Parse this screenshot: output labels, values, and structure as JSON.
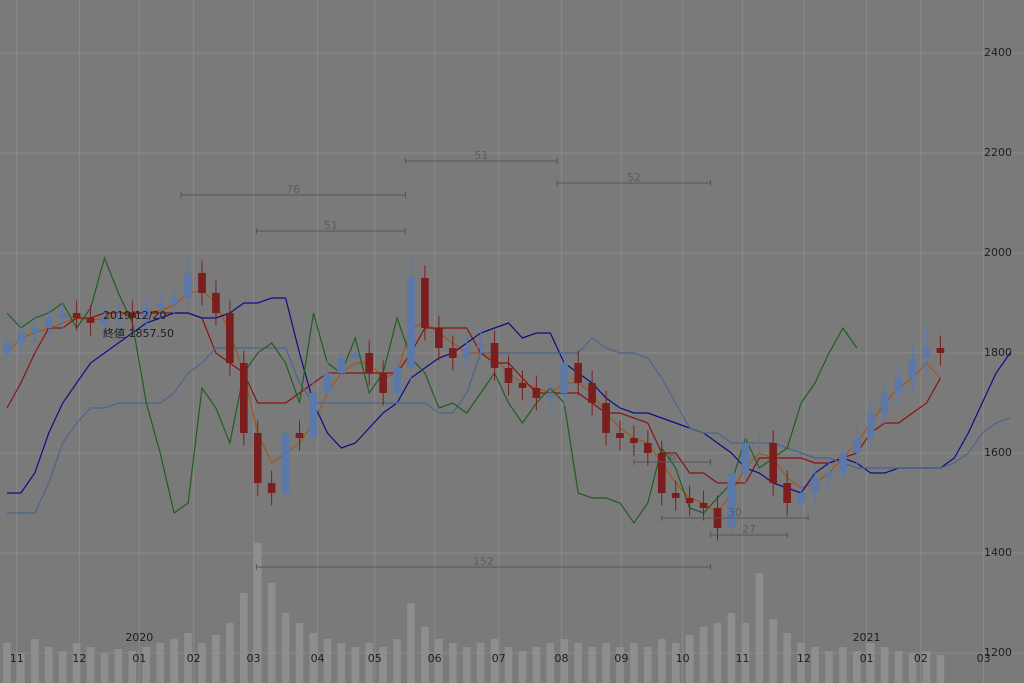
{
  "chart_data": {
    "type": "candlestick",
    "x": [
      0,
      1,
      2,
      3,
      4,
      5,
      6,
      7,
      8,
      9,
      10,
      11,
      12,
      13,
      14,
      15,
      16,
      17,
      18,
      19,
      20,
      21,
      22,
      23,
      24,
      25,
      26,
      27,
      28,
      29,
      30,
      31,
      32,
      33,
      34,
      35,
      36,
      37,
      38,
      39,
      40,
      41,
      42,
      43,
      44,
      45,
      46,
      47,
      48,
      49,
      50,
      51,
      52,
      53,
      54,
      55,
      56,
      57,
      58,
      59,
      60,
      61,
      62,
      63,
      64,
      65,
      66,
      67,
      68,
      69,
      70,
      71,
      72
    ],
    "xlim": [
      -0.5,
      73
    ],
    "ylim": [
      1140,
      2506
    ],
    "yticks": [
      1200,
      1400,
      1600,
      1800,
      2000,
      2200,
      2400
    ],
    "xticks": [
      {
        "value": 0.7,
        "label": "11"
      },
      {
        "value": 5.2,
        "label": "12"
      },
      {
        "value": 9.5,
        "label": "01"
      },
      {
        "value": 13.4,
        "label": "02"
      },
      {
        "value": 17.7,
        "label": "03"
      },
      {
        "value": 22.3,
        "label": "04"
      },
      {
        "value": 26.4,
        "label": "05"
      },
      {
        "value": 30.7,
        "label": "06"
      },
      {
        "value": 35.3,
        "label": "07"
      },
      {
        "value": 39.8,
        "label": "08"
      },
      {
        "value": 44.1,
        "label": "09"
      },
      {
        "value": 48.5,
        "label": "10"
      },
      {
        "value": 52.8,
        "label": "11"
      },
      {
        "value": 57.2,
        "label": "12"
      },
      {
        "value": 61.7,
        "label": "01"
      },
      {
        "value": 65.6,
        "label": "02"
      },
      {
        "value": 70.1,
        "label": "03"
      }
    ],
    "year_labels": [
      {
        "value": 9.5,
        "label": "2020"
      },
      {
        "value": 61.7,
        "label": "2021"
      }
    ],
    "grid": true,
    "up_color": "#5b78a8",
    "down_color": "#7a1e1e",
    "open": [
      1800,
      1820,
      1840,
      1850,
      1870,
      1880,
      1870,
      1860,
      1870,
      1880,
      1870,
      1890,
      1900,
      1910,
      1960,
      1920,
      1880,
      1780,
      1640,
      1540,
      1520,
      1640,
      1630,
      1720,
      1760,
      1790,
      1800,
      1760,
      1720,
      1770,
      1950,
      1850,
      1810,
      1790,
      1810,
      1820,
      1770,
      1740,
      1730,
      1710,
      1720,
      1780,
      1740,
      1700,
      1640,
      1630,
      1620,
      1600,
      1520,
      1510,
      1500,
      1490,
      1450,
      1560,
      1620,
      1620,
      1540,
      1500,
      1520,
      1550,
      1560,
      1600,
      1630,
      1680,
      1720,
      1750,
      1790,
      1810,
      null,
      null,
      null,
      null,
      null
    ],
    "high": [
      1845,
      1865,
      1875,
      1895,
      1905,
      1905,
      1895,
      1895,
      1905,
      1905,
      1915,
      1925,
      1935,
      1995,
      1985,
      1945,
      1905,
      1805,
      1665,
      1565,
      1665,
      1665,
      1745,
      1785,
      1815,
      1825,
      1825,
      1785,
      1795,
      1995,
      1975,
      1875,
      1835,
      1835,
      1845,
      1845,
      1795,
      1765,
      1755,
      1745,
      1805,
      1805,
      1765,
      1725,
      1665,
      1655,
      1645,
      1625,
      1545,
      1535,
      1525,
      1515,
      1585,
      1645,
      1645,
      1645,
      1565,
      1545,
      1575,
      1585,
      1625,
      1655,
      1705,
      1745,
      1775,
      1815,
      1855,
      1835,
      null,
      null,
      null,
      null,
      null
    ],
    "low": [
      1775,
      1795,
      1815,
      1825,
      1845,
      1845,
      1835,
      1835,
      1845,
      1845,
      1845,
      1865,
      1875,
      1885,
      1895,
      1855,
      1755,
      1615,
      1515,
      1495,
      1495,
      1605,
      1605,
      1695,
      1735,
      1765,
      1735,
      1695,
      1695,
      1745,
      1825,
      1785,
      1765,
      1765,
      1785,
      1745,
      1715,
      1705,
      1685,
      1685,
      1695,
      1715,
      1675,
      1615,
      1605,
      1595,
      1575,
      1495,
      1485,
      1475,
      1465,
      1425,
      1425,
      1535,
      1595,
      1515,
      1475,
      1475,
      1495,
      1525,
      1535,
      1575,
      1605,
      1655,
      1695,
      1725,
      1765,
      1775,
      null,
      null,
      null,
      null,
      null
    ],
    "close": [
      1820,
      1840,
      1850,
      1870,
      1880,
      1870,
      1860,
      1870,
      1880,
      1870,
      1890,
      1900,
      1910,
      1960,
      1920,
      1880,
      1780,
      1640,
      1540,
      1520,
      1640,
      1630,
      1720,
      1760,
      1790,
      1800,
      1760,
      1720,
      1770,
      1950,
      1850,
      1810,
      1790,
      1810,
      1820,
      1770,
      1740,
      1730,
      1710,
      1720,
      1780,
      1740,
      1700,
      1640,
      1630,
      1620,
      1600,
      1520,
      1510,
      1500,
      1490,
      1450,
      1560,
      1620,
      1620,
      1540,
      1500,
      1520,
      1550,
      1560,
      1600,
      1630,
      1680,
      1720,
      1750,
      1790,
      1810,
      1800,
      null,
      null,
      null,
      null,
      null
    ],
    "volume": {
      "color": "#8e8e8e",
      "y2lim": [
        0,
        100
      ],
      "values": [
        20,
        15,
        22,
        18,
        16,
        20,
        18,
        15,
        17,
        16,
        18,
        20,
        22,
        25,
        20,
        24,
        30,
        45,
        70,
        50,
        35,
        30,
        25,
        22,
        20,
        18,
        20,
        18,
        22,
        40,
        28,
        22,
        20,
        18,
        20,
        22,
        18,
        16,
        18,
        20,
        22,
        20,
        18,
        20,
        18,
        20,
        18,
        22,
        20,
        24,
        28,
        30,
        35,
        30,
        55,
        32,
        25,
        20,
        18,
        16,
        18,
        16,
        20,
        18,
        16,
        15,
        16,
        14,
        null,
        null,
        null,
        null,
        null
      ]
    },
    "series": [
      {
        "color": "#a0561c",
        "values": [
          1800,
          1830,
          1840,
          1850,
          1860,
          1870,
          1865,
          1870,
          1875,
          1880,
          1880,
          1885,
          1895,
          1920,
          1925,
          1900,
          1840,
          1760,
          1640,
          1580,
          1600,
          1620,
          1660,
          1720,
          1760,
          1780,
          1780,
          1750,
          1760,
          1850,
          1860,
          1840,
          1820,
          1800,
          1800,
          1790,
          1760,
          1740,
          1730,
          1720,
          1740,
          1740,
          1720,
          1680,
          1650,
          1630,
          1620,
          1580,
          1540,
          1510,
          1500,
          1480,
          1520,
          1570,
          1600,
          1590,
          1550,
          1530,
          1540,
          1560,
          1590,
          1620,
          1660,
          1700,
          1730,
          1750,
          1780,
          1750,
          null,
          null,
          null,
          null,
          null
        ]
      },
      {
        "color": "#8b1212",
        "values": [
          1690,
          1740,
          1800,
          1850,
          1850,
          1870,
          1870,
          1880,
          1880,
          1880,
          1880,
          1880,
          1880,
          1880,
          1870,
          1800,
          1780,
          1760,
          1700,
          1700,
          1700,
          1720,
          1740,
          1760,
          1760,
          1760,
          1760,
          1760,
          1760,
          1800,
          1850,
          1850,
          1850,
          1850,
          1800,
          1780,
          1780,
          1750,
          1720,
          1720,
          1720,
          1720,
          1700,
          1680,
          1680,
          1670,
          1660,
          1600,
          1600,
          1560,
          1560,
          1540,
          1540,
          1540,
          1590,
          1590,
          1590,
          1590,
          1580,
          1580,
          1590,
          1600,
          1640,
          1660,
          1660,
          1680,
          1700,
          1750,
          null,
          null,
          null,
          null,
          null
        ]
      },
      {
        "color": "#0d0d8a",
        "values": [
          1520,
          1520,
          1560,
          1640,
          1700,
          1740,
          1780,
          1800,
          1820,
          1840,
          1860,
          1870,
          1880,
          1880,
          1870,
          1870,
          1880,
          1900,
          1900,
          1910,
          1910,
          1800,
          1700,
          1640,
          1610,
          1620,
          1650,
          1680,
          1700,
          1750,
          1770,
          1790,
          1800,
          1820,
          1840,
          1850,
          1860,
          1830,
          1840,
          1840,
          1780,
          1760,
          1740,
          1710,
          1690,
          1680,
          1680,
          1670,
          1660,
          1650,
          1640,
          1620,
          1600,
          1570,
          1560,
          1540,
          1530,
          1520,
          1560,
          1580,
          1590,
          1580,
          1560,
          1560,
          1570,
          1570,
          1570,
          1570,
          1590,
          1640,
          1700,
          1760,
          1800
        ]
      },
      {
        "color": "#4a6590",
        "values": [
          1480,
          1480,
          1480,
          1540,
          1620,
          1660,
          1690,
          1690,
          1700,
          1700,
          1700,
          1700,
          1720,
          1760,
          1780,
          1810,
          1810,
          1810,
          1810,
          1810,
          1810,
          1740,
          1700,
          1700,
          1700,
          1700,
          1700,
          1700,
          1700,
          1700,
          1700,
          1680,
          1680,
          1720,
          1800,
          1800,
          1800,
          1800,
          1800,
          1800,
          1800,
          1800,
          1830,
          1810,
          1800,
          1800,
          1790,
          1750,
          1700,
          1650,
          1640,
          1640,
          1620,
          1620,
          1620,
          1620,
          1610,
          1600,
          1590,
          1590,
          1580,
          1570,
          1570,
          1570,
          1570,
          1570,
          1570,
          1570,
          1580,
          1600,
          1640,
          1660,
          1670
        ]
      },
      {
        "color": "#1f5e1f",
        "values": [
          1880,
          1850,
          1870,
          1880,
          1900,
          1850,
          1890,
          1990,
          1920,
          1860,
          1700,
          1600,
          1480,
          1500,
          1730,
          1690,
          1620,
          1760,
          1800,
          1820,
          1780,
          1700,
          1880,
          1780,
          1760,
          1830,
          1720,
          1760,
          1870,
          1790,
          1760,
          1690,
          1700,
          1680,
          1720,
          1760,
          1700,
          1660,
          1700,
          1730,
          1700,
          1520,
          1510,
          1510,
          1500,
          1460,
          1500,
          1610,
          1570,
          1490,
          1480,
          1510,
          1540,
          1630,
          1570,
          1590,
          1610,
          1700,
          1740,
          1800,
          1850,
          1810,
          null,
          null,
          null,
          null,
          null,
          null,
          null,
          null,
          null,
          null,
          null
        ]
      }
    ],
    "annotations": [
      {
        "label": "76",
        "x1": 12.5,
        "x2": 28.6,
        "y": 2116
      },
      {
        "label": "51",
        "x1": 17.9,
        "x2": 28.6,
        "y": 2044
      },
      {
        "label": "51",
        "x1": 28.6,
        "x2": 39.5,
        "y": 2184
      },
      {
        "label": "52",
        "x1": 39.5,
        "x2": 50.5,
        "y": 2140
      },
      {
        "label": "152",
        "x1": 17.9,
        "x2": 50.5,
        "y": 1372
      },
      {
        "label": "27",
        "x1": 50.5,
        "x2": 56.0,
        "y": 1436
      },
      {
        "label": "30",
        "x1": 47.0,
        "x2": 57.5,
        "y": 1470
      },
      {
        "label": "6",
        "x1": 45.0,
        "x2": 50.5,
        "y": 1582
      }
    ],
    "info": [
      "2019/12/20",
      "終値 1857.50"
    ]
  }
}
